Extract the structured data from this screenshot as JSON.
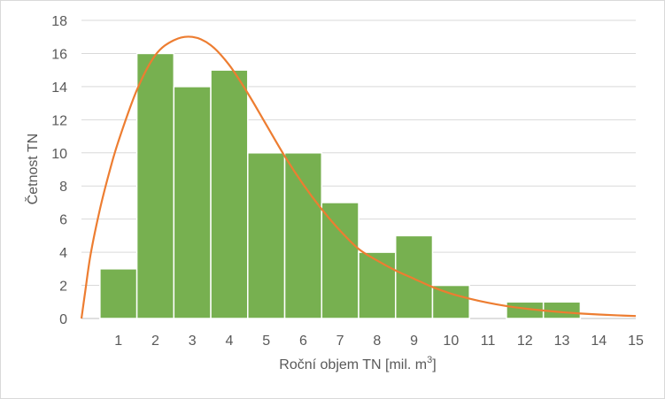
{
  "chart_data": {
    "type": "bar",
    "xlabel": "Roční objem TN [mil. m",
    "xlabel_sup": "3",
    "xlabel_suffix": "]",
    "ylabel": "Četnost TN",
    "categories": [
      "1",
      "2",
      "3",
      "4",
      "5",
      "6",
      "7",
      "8",
      "9",
      "10",
      "11",
      "12",
      "13",
      "14",
      "15"
    ],
    "x_tick_labels": [
      "1",
      "2",
      "3",
      "4",
      "5",
      "6",
      "7",
      "8",
      "9",
      "10",
      "11",
      "12",
      "13",
      "14",
      "15"
    ],
    "y_tick_labels": [
      "0",
      "2",
      "4",
      "6",
      "8",
      "10",
      "12",
      "14",
      "16",
      "18"
    ],
    "ylim": [
      0,
      18
    ],
    "xlim": [
      0,
      15
    ],
    "grid": true,
    "legend": "none",
    "series": [
      {
        "type": "bar",
        "color": "#77b050",
        "values": [
          3,
          16,
          14,
          15,
          10,
          10,
          7,
          4,
          5,
          2,
          0,
          1,
          1,
          0,
          0
        ]
      },
      {
        "type": "line",
        "color": "#ed7d31",
        "x": [
          0.0,
          0.1,
          0.25,
          0.5,
          0.75,
          1.0,
          1.5,
          2.0,
          2.5,
          3.0,
          3.5,
          4.0,
          4.5,
          5.0,
          5.5,
          6.0,
          6.5,
          7.0,
          7.5,
          8.0,
          8.5,
          9.0,
          9.5,
          10.0,
          10.5,
          11.0,
          11.5,
          12.0,
          12.5,
          13.0,
          13.5,
          14.0,
          14.5,
          15.0
        ],
        "y": [
          0.0,
          1.6,
          3.9,
          6.6,
          8.8,
          10.7,
          13.8,
          15.9,
          16.8,
          17.0,
          16.5,
          15.3,
          13.6,
          11.7,
          9.8,
          8.1,
          6.6,
          5.3,
          4.2,
          3.5,
          2.9,
          2.4,
          1.9,
          1.5,
          1.2,
          0.95,
          0.75,
          0.6,
          0.48,
          0.38,
          0.3,
          0.24,
          0.19,
          0.15
        ]
      }
    ]
  }
}
